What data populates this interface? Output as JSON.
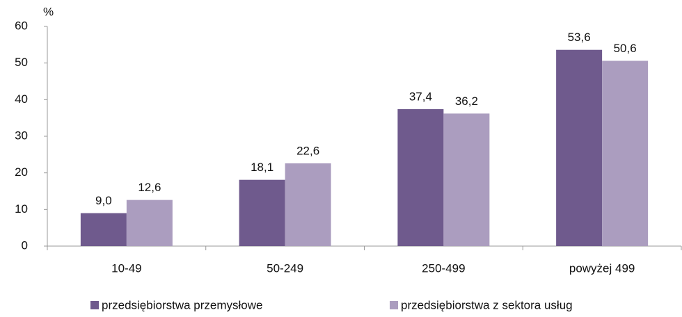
{
  "chart_data": {
    "type": "bar",
    "y_label": "%",
    "categories": [
      "10-49",
      "50-249",
      "250-499",
      "powyżej 499"
    ],
    "series": [
      {
        "name": "przedsiębiorstwa przemysłowe",
        "color": "#6f5a8d",
        "values": [
          9.0,
          18.1,
          37.4,
          53.6
        ],
        "value_labels": [
          "9,0",
          "18,1",
          "37,4",
          "53,6"
        ]
      },
      {
        "name": "przedsiębiorstwa z sektora usług",
        "color": "#ab9dbf",
        "values": [
          12.6,
          22.6,
          36.2,
          50.6
        ],
        "value_labels": [
          "12,6",
          "22,6",
          "36,2",
          "50,6"
        ]
      }
    ],
    "ylim": [
      0,
      60
    ],
    "yticks": [
      0,
      10,
      20,
      30,
      40,
      50,
      60
    ],
    "grid": false,
    "legend": "bottom"
  }
}
